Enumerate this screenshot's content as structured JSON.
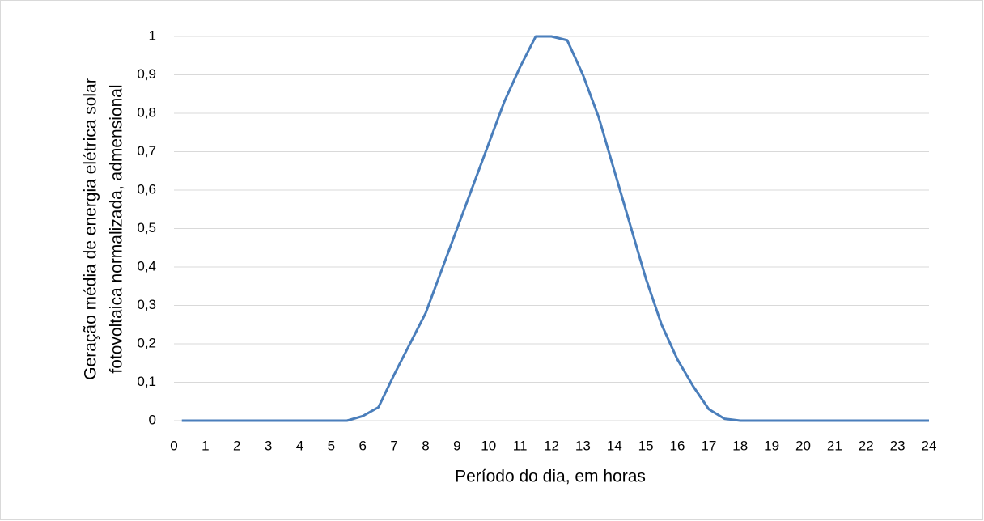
{
  "chart_data": {
    "type": "line",
    "xlabel": "Período do dia, em horas",
    "ylabel": [
      "Geração  média de energia elétrica  solar",
      "fotovoltaica normalizada, admensional"
    ],
    "x": [
      0.25,
      5.5,
      6,
      6.5,
      7,
      7.5,
      8,
      8.5,
      9,
      9.5,
      10,
      10.5,
      11,
      11.5,
      12,
      12.5,
      13,
      13.5,
      14,
      14.5,
      15,
      15.5,
      16,
      16.5,
      17,
      17.5,
      18,
      24
    ],
    "series": [
      {
        "color": "#4a7ebb",
        "values": [
          0,
          0,
          0.012,
          0.035,
          0.12,
          0.2,
          0.28,
          0.39,
          0.5,
          0.61,
          0.72,
          0.83,
          0.92,
          1.0,
          1.0,
          0.99,
          0.9,
          0.79,
          0.65,
          0.51,
          0.37,
          0.25,
          0.16,
          0.09,
          0.03,
          0.005,
          0,
          0
        ]
      }
    ],
    "xlim": [
      0,
      24
    ],
    "xticks": [
      0,
      1,
      2,
      3,
      4,
      5,
      6,
      7,
      8,
      9,
      10,
      11,
      12,
      13,
      14,
      15,
      16,
      17,
      18,
      19,
      20,
      21,
      22,
      23,
      24
    ],
    "ylim": [
      0,
      1
    ],
    "yticks": [
      0,
      {
        "value": 0.1,
        "label": "0,1"
      },
      {
        "value": 0.2,
        "label": "0,2"
      },
      {
        "value": 0.3,
        "label": "0,3"
      },
      {
        "value": 0.4,
        "label": "0,4"
      },
      {
        "value": 0.5,
        "label": "0,5"
      },
      {
        "value": 0.6,
        "label": "0,6"
      },
      {
        "value": 0.7,
        "label": "0,7"
      },
      {
        "value": 0.8,
        "label": "0,8"
      },
      {
        "value": 0.9,
        "label": "0,9"
      },
      1
    ],
    "grid": true
  }
}
